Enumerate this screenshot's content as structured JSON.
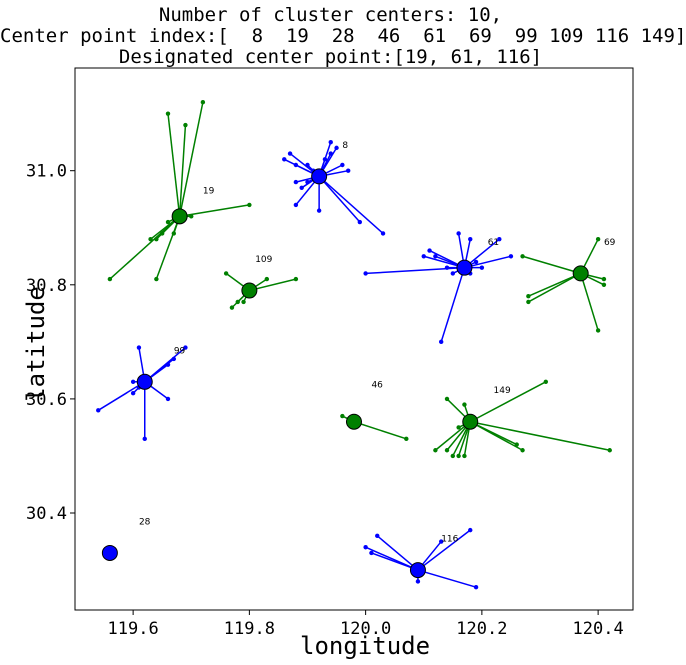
{
  "chart_data": {
    "type": "scatter",
    "title_lines": [
      "Number of cluster centers: 10,",
      "Center point index:[  8  19  28  46  61  69  99 109 116 149]",
      "Designated center point:[19, 61, 116]"
    ],
    "xlabel": "longitude",
    "ylabel": "latitude",
    "xlim": [
      119.5,
      120.46
    ],
    "ylim": [
      30.23,
      31.18
    ],
    "xticks": [
      119.6,
      119.8,
      120.0,
      120.2,
      120.4
    ],
    "xtick_labels": [
      "119.6",
      "119.8",
      "120.0",
      "120.2",
      "120.4"
    ],
    "yticks": [
      30.4,
      30.6,
      30.8,
      31.0
    ],
    "ytick_labels": [
      "30.4",
      "30.6",
      "30.8",
      "31.0"
    ],
    "grid": false,
    "colors": {
      "blue": "#0000ff",
      "green": "#008000"
    },
    "clusters": [
      {
        "id": "8",
        "color": "blue",
        "center": [
          119.92,
          30.99
        ],
        "label_pos": [
          119.96,
          31.04
        ],
        "points": [
          [
            119.87,
            31.03
          ],
          [
            119.86,
            31.02
          ],
          [
            119.88,
            31.01
          ],
          [
            119.9,
            31.01
          ],
          [
            119.91,
            31.0
          ],
          [
            119.93,
            31.02
          ],
          [
            119.94,
            31.03
          ],
          [
            119.95,
            31.04
          ],
          [
            119.96,
            31.01
          ],
          [
            119.97,
            31.0
          ],
          [
            119.88,
            30.98
          ],
          [
            119.89,
            30.97
          ],
          [
            119.9,
            30.98
          ],
          [
            119.92,
            30.93
          ],
          [
            119.88,
            30.94
          ],
          [
            119.99,
            30.91
          ],
          [
            120.03,
            30.89
          ],
          [
            119.94,
            31.05
          ]
        ]
      },
      {
        "id": "19",
        "color": "green",
        "center": [
          119.68,
          30.92
        ],
        "label_pos": [
          119.72,
          30.96
        ],
        "points": [
          [
            119.66,
            31.1
          ],
          [
            119.69,
            31.08
          ],
          [
            119.72,
            31.12
          ],
          [
            119.8,
            30.94
          ],
          [
            119.56,
            30.81
          ],
          [
            119.64,
            30.81
          ],
          [
            119.64,
            30.88
          ],
          [
            119.65,
            30.89
          ],
          [
            119.66,
            30.91
          ],
          [
            119.67,
            30.89
          ],
          [
            119.63,
            30.88
          ],
          [
            119.7,
            30.92
          ]
        ]
      },
      {
        "id": "28",
        "color": "blue",
        "center": [
          119.56,
          30.33
        ],
        "label_pos": [
          119.61,
          30.38
        ],
        "points": []
      },
      {
        "id": "46",
        "color": "green",
        "center": [
          119.98,
          30.56
        ],
        "label_pos": [
          120.01,
          30.62
        ],
        "points": [
          [
            119.96,
            30.57
          ],
          [
            119.97,
            30.56
          ],
          [
            120.07,
            30.53
          ]
        ]
      },
      {
        "id": "61",
        "color": "blue",
        "center": [
          120.17,
          30.83
        ],
        "label_pos": [
          120.21,
          30.87
        ],
        "points": [
          [
            120.0,
            30.82
          ],
          [
            120.13,
            30.7
          ],
          [
            120.1,
            30.85
          ],
          [
            120.11,
            30.86
          ],
          [
            120.12,
            30.85
          ],
          [
            120.16,
            30.89
          ],
          [
            120.18,
            30.88
          ],
          [
            120.19,
            30.84
          ],
          [
            120.2,
            30.83
          ],
          [
            120.23,
            30.88
          ],
          [
            120.25,
            30.85
          ],
          [
            120.14,
            30.83
          ],
          [
            120.15,
            30.82
          ],
          [
            120.18,
            30.82
          ]
        ]
      },
      {
        "id": "69",
        "color": "green",
        "center": [
          120.37,
          30.82
        ],
        "label_pos": [
          120.41,
          30.87
        ],
        "points": [
          [
            120.27,
            30.85
          ],
          [
            120.28,
            30.77
          ],
          [
            120.28,
            30.78
          ],
          [
            120.4,
            30.88
          ],
          [
            120.41,
            30.81
          ],
          [
            120.41,
            30.8
          ],
          [
            120.4,
            30.72
          ]
        ]
      },
      {
        "id": "99",
        "color": "blue",
        "center": [
          119.62,
          30.63
        ],
        "label_pos": [
          119.67,
          30.68
        ],
        "points": [
          [
            119.54,
            30.58
          ],
          [
            119.61,
            30.69
          ],
          [
            119.6,
            30.63
          ],
          [
            119.6,
            30.61
          ],
          [
            119.61,
            30.62
          ],
          [
            119.62,
            30.53
          ],
          [
            119.66,
            30.6
          ],
          [
            119.66,
            30.66
          ],
          [
            119.67,
            30.67
          ],
          [
            119.69,
            30.69
          ]
        ]
      },
      {
        "id": "109",
        "color": "green",
        "center": [
          119.8,
          30.79
        ],
        "label_pos": [
          119.81,
          30.84
        ],
        "points": [
          [
            119.76,
            30.82
          ],
          [
            119.77,
            30.76
          ],
          [
            119.78,
            30.77
          ],
          [
            119.79,
            30.77
          ],
          [
            119.83,
            30.81
          ],
          [
            119.88,
            30.81
          ]
        ]
      },
      {
        "id": "116",
        "color": "blue",
        "center": [
          120.09,
          30.3
        ],
        "label_pos": [
          120.13,
          30.35
        ],
        "points": [
          [
            120.0,
            30.34
          ],
          [
            120.01,
            30.33
          ],
          [
            120.02,
            30.36
          ],
          [
            120.09,
            30.28
          ],
          [
            120.13,
            30.35
          ],
          [
            120.18,
            30.37
          ],
          [
            120.19,
            30.27
          ]
        ]
      },
      {
        "id": "149",
        "color": "green",
        "center": [
          120.18,
          30.56
        ],
        "label_pos": [
          120.22,
          30.61
        ],
        "points": [
          [
            120.14,
            30.6
          ],
          [
            120.12,
            30.51
          ],
          [
            120.14,
            30.51
          ],
          [
            120.15,
            30.5
          ],
          [
            120.16,
            30.5
          ],
          [
            120.17,
            30.5
          ],
          [
            120.26,
            30.52
          ],
          [
            120.27,
            30.51
          ],
          [
            120.31,
            30.63
          ],
          [
            120.42,
            30.51
          ],
          [
            120.17,
            30.59
          ],
          [
            120.16,
            30.55
          ]
        ]
      }
    ]
  }
}
